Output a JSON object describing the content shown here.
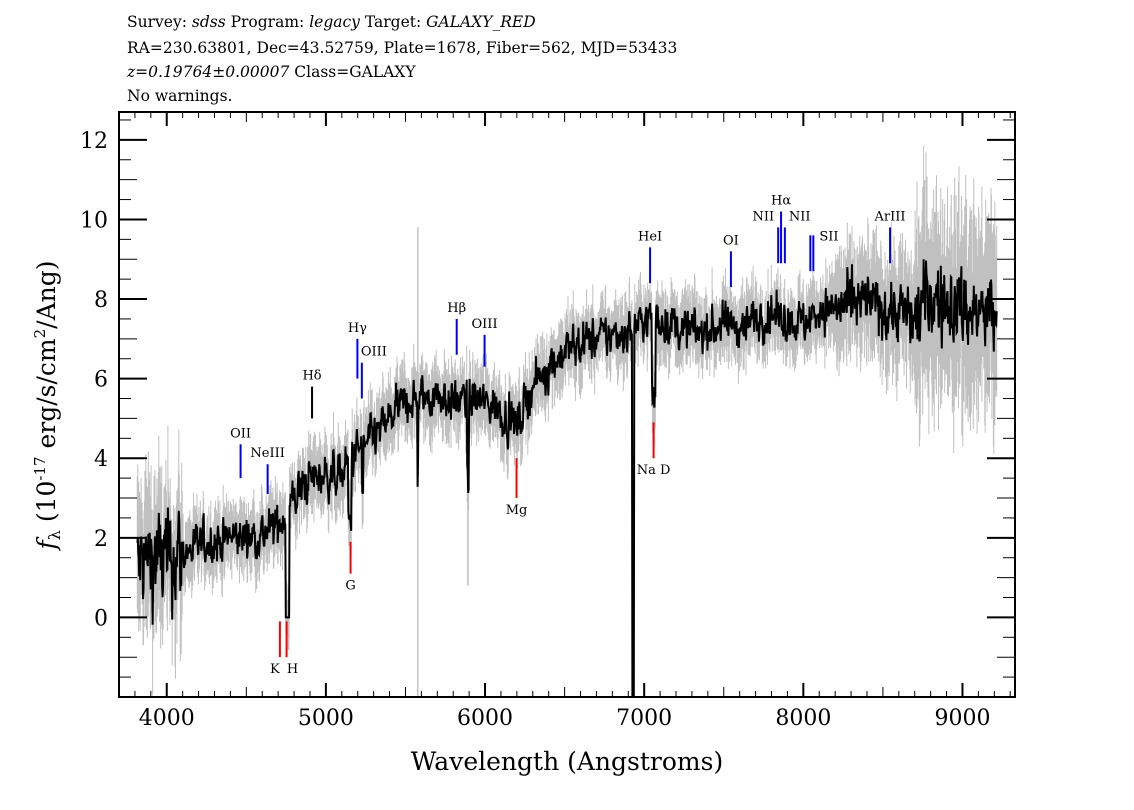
{
  "header": {
    "survey_label": "Survey:",
    "survey": "sdss",
    "program_label": "Program:",
    "program": "legacy",
    "target_label": "Target:",
    "target": "GALAXY_RED",
    "line2": "RA=230.63801, Dec=43.52759, Plate=1678, Fiber=562, MJD=53433",
    "redshift": "z=0.19764±0.00007",
    "class": "Class=GALAXY",
    "warnings": "No warnings."
  },
  "chart_data": {
    "type": "line",
    "title": "",
    "xlabel": "Wavelength (Angstroms)",
    "ylabel": {
      "symbol": "f",
      "sub": "λ",
      "pre": " (10",
      "exp": "-17",
      "mid": " erg/s/cm",
      "exp2": "2",
      "post": "/Ang)"
    },
    "xlim": [
      3700,
      9330
    ],
    "ylim": [
      -2,
      12.7
    ],
    "xticks": [
      4000,
      5000,
      6000,
      7000,
      8000,
      9000
    ],
    "yticks": [
      0,
      2,
      4,
      6,
      8,
      10,
      12
    ],
    "grid": false,
    "series": [
      {
        "role": "flux",
        "color": "#000000",
        "continuum": [
          [
            3800,
            1.2
          ],
          [
            3900,
            1.5
          ],
          [
            4000,
            1.4
          ],
          [
            4100,
            1.6
          ],
          [
            4200,
            1.8
          ],
          [
            4300,
            1.9
          ],
          [
            4400,
            2.0
          ],
          [
            4500,
            2.0
          ],
          [
            4600,
            2.1
          ],
          [
            4700,
            2.3
          ],
          [
            4770,
            2.8
          ],
          [
            4800,
            3.0
          ],
          [
            4900,
            3.5
          ],
          [
            5000,
            3.6
          ],
          [
            5100,
            3.6
          ],
          [
            5200,
            4.2
          ],
          [
            5300,
            4.5
          ],
          [
            5400,
            5.0
          ],
          [
            5500,
            5.4
          ],
          [
            5600,
            5.5
          ],
          [
            5700,
            5.6
          ],
          [
            5800,
            5.4
          ],
          [
            5900,
            5.5
          ],
          [
            6000,
            5.4
          ],
          [
            6100,
            5.2
          ],
          [
            6200,
            4.8
          ],
          [
            6300,
            5.8
          ],
          [
            6400,
            6.3
          ],
          [
            6500,
            6.7
          ],
          [
            6600,
            6.9
          ],
          [
            6700,
            7.0
          ],
          [
            6800,
            7.1
          ],
          [
            6900,
            7.2
          ],
          [
            7000,
            7.5
          ],
          [
            7100,
            7.5
          ],
          [
            7200,
            7.3
          ],
          [
            7300,
            7.2
          ],
          [
            7400,
            7.2
          ],
          [
            7500,
            7.4
          ],
          [
            7600,
            7.3
          ],
          [
            7700,
            7.5
          ],
          [
            7800,
            7.6
          ],
          [
            7900,
            7.5
          ],
          [
            8000,
            7.4
          ],
          [
            8100,
            7.7
          ],
          [
            8200,
            7.8
          ],
          [
            8300,
            7.8
          ],
          [
            8400,
            7.9
          ],
          [
            8500,
            7.8
          ],
          [
            8600,
            7.7
          ],
          [
            8700,
            7.5
          ],
          [
            8800,
            8.1
          ],
          [
            8900,
            7.8
          ],
          [
            9000,
            7.8
          ],
          [
            9100,
            7.6
          ],
          [
            9200,
            7.6
          ]
        ]
      },
      {
        "role": "error band",
        "color": "#c0c0c0"
      }
    ],
    "lines": [
      {
        "label": "OII",
        "wavelength": 4464,
        "kind": "emission",
        "color": "#0000ff"
      },
      {
        "label": "NeIII",
        "wavelength": 4634,
        "kind": "emission",
        "color": "#0000ff"
      },
      {
        "label": "Hδ",
        "wavelength": 4913,
        "kind": "emission",
        "color": "#000000"
      },
      {
        "label": "Hγ",
        "wavelength": 5198,
        "kind": "emission",
        "color": "#0000ff"
      },
      {
        "label": "OIII",
        "wavelength": 5226,
        "kind": "emission",
        "color": "#0000ff"
      },
      {
        "label": "Hβ",
        "wavelength": 5822,
        "kind": "emission",
        "color": "#0000ff"
      },
      {
        "label": "OIII",
        "wavelength": 5997,
        "kind": "emission",
        "color": "#0000ff"
      },
      {
        "label": "HeI",
        "wavelength": 7037,
        "kind": "emission",
        "color": "#0000ff"
      },
      {
        "label": "OI",
        "wavelength": 7545,
        "kind": "emission",
        "color": "#0000ff"
      },
      {
        "label": "NII",
        "wavelength": 7842,
        "kind": "emission",
        "color": "#0000ff"
      },
      {
        "label": "Hα",
        "wavelength": 7860,
        "kind": "emission",
        "color": "#0000ff"
      },
      {
        "label": "NII",
        "wavelength": 7884,
        "kind": "emission",
        "color": "#0000ff"
      },
      {
        "label": "SII",
        "wavelength": 8044,
        "kind": "emission",
        "color": "#0000ff"
      },
      {
        "label": "ArIII",
        "wavelength": 8545,
        "kind": "emission",
        "color": "#0000ff"
      },
      {
        "label": "K",
        "wavelength": 4711,
        "kind": "absorption",
        "color": "#ff0000"
      },
      {
        "label": "H",
        "wavelength": 4753,
        "kind": "absorption",
        "color": "#ff0000"
      },
      {
        "label": "G",
        "wavelength": 5155,
        "kind": "absorption",
        "color": "#ff0000"
      },
      {
        "label": "Mg",
        "wavelength": 6198,
        "kind": "absorption",
        "color": "#ff0000"
      },
      {
        "label": "Na D",
        "wavelength": 7059,
        "kind": "absorption",
        "color": "#ff0000"
      }
    ]
  }
}
